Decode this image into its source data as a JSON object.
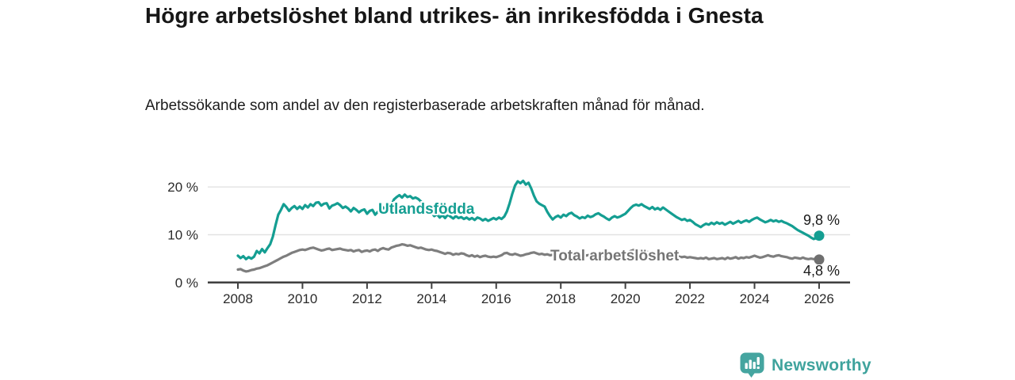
{
  "footer": {
    "brand": "Newsworthy"
  },
  "chart_data": {
    "type": "line",
    "title": "Högre arbetslöshet bland utrikes- än inrikesfödda i Gnesta",
    "subtitle": "Arbetssökande som andel av den registerbaserade arbetskraften månad för månad.",
    "xlabel": "",
    "ylabel": "",
    "xlim": [
      2008,
      2027
    ],
    "ylim": [
      0,
      22
    ],
    "grid": "horizontal",
    "legend_position": "inline-labels",
    "x_ticks": [
      2008,
      2010,
      2012,
      2014,
      2016,
      2018,
      2020,
      2022,
      2024,
      2026
    ],
    "x_tick_labels": [
      "2008",
      "2010",
      "2012",
      "2014",
      "2016",
      "2018",
      "2020",
      "2022",
      "2024",
      "2026"
    ],
    "y_ticks": [
      {
        "value": 0,
        "label": "0 %"
      },
      {
        "value": 10,
        "label": "10 %"
      },
      {
        "value": 20,
        "label": "20 %"
      }
    ],
    "series": [
      {
        "id": "utlandsfodda",
        "name": "Utlandsfödda",
        "label": "Utlandsfödda",
        "color": "#149E92",
        "dot_color": "#149E92",
        "end_label": "9,8 %",
        "end_value": 9.8,
        "start_year": 2008,
        "points_per_year": 12,
        "values": [
          5.6,
          5.1,
          5.5,
          4.9,
          5.3,
          5.0,
          5.4,
          6.6,
          6.1,
          7.0,
          6.3,
          7.2,
          8.0,
          9.6,
          12.0,
          14.2,
          15.2,
          16.4,
          15.8,
          15.0,
          15.6,
          16.0,
          15.4,
          15.9,
          15.4,
          16.2,
          15.7,
          16.4,
          16.0,
          16.7,
          16.8,
          16.1,
          16.5,
          16.6,
          15.5,
          16.1,
          16.3,
          16.6,
          16.2,
          15.6,
          15.9,
          15.5,
          14.9,
          15.6,
          15.2,
          14.7,
          15.1,
          15.3,
          14.4,
          15.0,
          15.2,
          14.2,
          14.8,
          15.1,
          15.7,
          14.8,
          15.4,
          16.1,
          17.4,
          17.9,
          18.3,
          17.8,
          18.4,
          17.9,
          18.1,
          17.6,
          17.8,
          17.5,
          17.0,
          16.3,
          15.8,
          15.0,
          14.6,
          13.9,
          14.3,
          13.6,
          14.1,
          13.5,
          14.2,
          13.8,
          13.4,
          13.9,
          13.5,
          13.7,
          13.3,
          13.6,
          13.2,
          13.5,
          13.1,
          13.6,
          13.4,
          13.0,
          13.3,
          12.9,
          13.2,
          13.5,
          13.2,
          13.6,
          13.3,
          13.8,
          14.9,
          16.6,
          18.6,
          20.3,
          21.2,
          20.8,
          21.3,
          20.5,
          20.9,
          19.7,
          18.2,
          17.0,
          16.5,
          16.2,
          15.9,
          14.8,
          13.9,
          13.2,
          13.7,
          14.0,
          13.6,
          14.2,
          13.9,
          14.4,
          14.6,
          14.1,
          13.8,
          13.4,
          13.7,
          13.5,
          14.0,
          13.7,
          13.9,
          14.3,
          14.5,
          14.1,
          13.8,
          13.4,
          13.1,
          13.6,
          13.9,
          13.6,
          13.8,
          14.1,
          14.4,
          15.0,
          15.6,
          16.1,
          16.3,
          16.1,
          16.4,
          16.0,
          15.7,
          15.4,
          15.8,
          15.3,
          15.6,
          15.2,
          15.7,
          15.3,
          14.9,
          14.5,
          14.1,
          13.7,
          13.4,
          13.1,
          13.3,
          12.9,
          13.1,
          12.7,
          12.2,
          11.9,
          11.6,
          12.0,
          12.3,
          12.1,
          12.5,
          12.2,
          12.6,
          12.3,
          12.5,
          12.1,
          12.4,
          12.7,
          12.3,
          12.6,
          12.9,
          12.5,
          12.8,
          13.0,
          12.7,
          13.1,
          13.4,
          13.6,
          13.2,
          12.9,
          12.6,
          12.8,
          13.1,
          12.8,
          13.0,
          12.7,
          12.9,
          12.6,
          12.4,
          12.1,
          11.8,
          11.4,
          11.0,
          10.7,
          10.4,
          10.1,
          9.8,
          9.4,
          9.1,
          9.3,
          9.8
        ]
      },
      {
        "id": "total-arbetsloshet",
        "name": "Total arbetslöshet",
        "label": "Total arbetslöshet",
        "color": "#7E7E7E",
        "dot_color": "#6F6F6F",
        "end_label": "4,8 %",
        "end_value": 4.8,
        "start_year": 2008,
        "points_per_year": 12,
        "values": [
          2.7,
          2.8,
          2.5,
          2.3,
          2.4,
          2.6,
          2.7,
          2.9,
          3.0,
          3.2,
          3.4,
          3.6,
          3.9,
          4.2,
          4.5,
          4.8,
          5.1,
          5.4,
          5.6,
          5.9,
          6.2,
          6.4,
          6.6,
          6.8,
          6.9,
          6.8,
          7.0,
          7.2,
          7.3,
          7.1,
          6.9,
          6.7,
          6.8,
          7.0,
          7.1,
          6.8,
          6.9,
          7.0,
          7.1,
          6.9,
          6.8,
          6.7,
          6.8,
          6.5,
          6.7,
          6.8,
          6.4,
          6.6,
          6.7,
          6.5,
          6.8,
          6.9,
          6.6,
          7.0,
          7.2,
          7.0,
          6.9,
          7.3,
          7.5,
          7.7,
          7.8,
          8.0,
          7.9,
          7.7,
          7.8,
          7.6,
          7.4,
          7.2,
          7.3,
          7.1,
          6.9,
          6.8,
          6.9,
          6.7,
          6.6,
          6.4,
          6.2,
          6.0,
          6.2,
          6.1,
          5.8,
          6.0,
          5.9,
          6.1,
          6.0,
          5.7,
          5.5,
          5.7,
          5.4,
          5.6,
          5.3,
          5.5,
          5.6,
          5.4,
          5.3,
          5.4,
          5.3,
          5.5,
          5.7,
          6.1,
          6.2,
          5.9,
          5.8,
          6.0,
          5.8,
          5.6,
          5.7,
          5.9,
          6.0,
          6.2,
          6.3,
          6.1,
          5.9,
          6.0,
          5.8,
          5.9,
          5.7,
          5.8,
          6.0,
          5.9,
          5.8,
          5.9,
          6.1,
          5.9,
          5.8,
          5.6,
          5.7,
          5.9,
          5.8,
          5.6,
          5.7,
          5.8,
          5.7,
          5.8,
          5.6,
          5.7,
          5.5,
          5.6,
          5.8,
          5.7,
          5.9,
          5.8,
          5.9,
          6.0,
          6.1,
          6.3,
          6.6,
          6.8,
          6.9,
          6.7,
          6.6,
          6.5,
          6.4,
          6.3,
          6.2,
          6.3,
          6.2,
          6.1,
          6.0,
          5.9,
          5.8,
          5.7,
          5.6,
          5.5,
          5.4,
          5.3,
          5.4,
          5.2,
          5.3,
          5.2,
          5.1,
          5.0,
          5.1,
          5.0,
          5.2,
          4.9,
          5.0,
          5.1,
          4.9,
          5.0,
          5.1,
          4.9,
          5.2,
          5.0,
          5.1,
          5.3,
          5.0,
          5.2,
          5.1,
          5.3,
          5.2,
          5.4,
          5.6,
          5.4,
          5.2,
          5.3,
          5.5,
          5.7,
          5.5,
          5.4,
          5.6,
          5.7,
          5.5,
          5.4,
          5.3,
          5.1,
          5.0,
          5.2,
          5.1,
          5.0,
          5.2,
          5.0,
          4.9,
          5.0,
          4.9,
          5.0,
          4.8
        ]
      }
    ]
  }
}
